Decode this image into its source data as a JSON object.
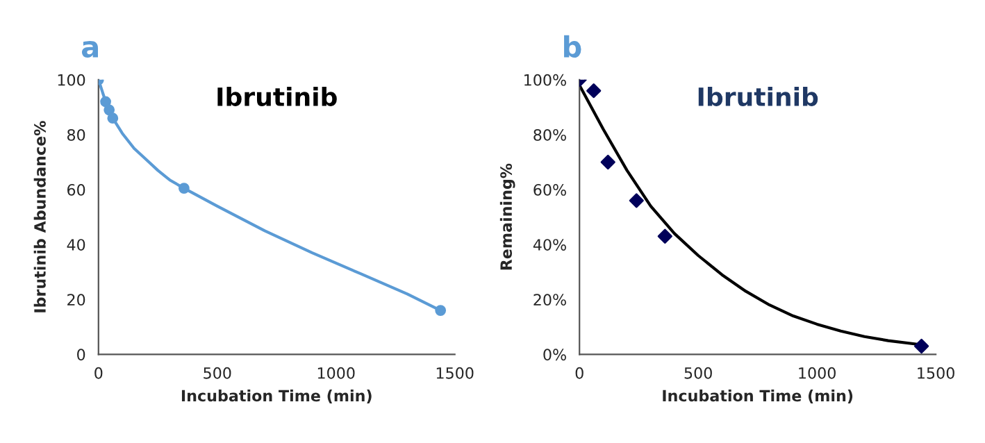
{
  "chart_data": [
    {
      "type": "line",
      "title": "Ibrutinib",
      "annotations": [
        "a"
      ],
      "xlabel": "Incubation Time (min)",
      "ylabel": "Ibrutinib Abundance%",
      "xlim": [
        0,
        1500
      ],
      "ylim": [
        0,
        100
      ],
      "xticks": [
        0,
        500,
        1000,
        1500
      ],
      "yticks": [
        0,
        20,
        40,
        60,
        80,
        100
      ],
      "grid": false,
      "legend": false,
      "marker": "circle",
      "line_style": "solid",
      "series": [
        {
          "color": "#5b9bd5",
          "marker": "none",
          "x": [
            0,
            30,
            45,
            60,
            100,
            150,
            200,
            250,
            300,
            360,
            500,
            700,
            900,
            1100,
            1300,
            1440
          ],
          "values": [
            100,
            92,
            89,
            86,
            80.5,
            75,
            71,
            67,
            63.5,
            60.5,
            54,
            45,
            37,
            29.5,
            22,
            16
          ]
        },
        {
          "type": "scatter",
          "color": "#5b9bd5",
          "x": [
            0,
            30,
            45,
            60,
            360,
            1440
          ],
          "values": [
            100,
            92,
            89,
            86,
            60.5,
            16
          ]
        }
      ]
    },
    {
      "type": "scatter",
      "title": "Ibrutinib",
      "annotations": [
        "b"
      ],
      "xlabel": "Incubation Time (min)",
      "ylabel": "Remaining%",
      "xlim": [
        0,
        1500
      ],
      "ylim": [
        0,
        100
      ],
      "xticks": [
        0,
        500,
        1000,
        1500
      ],
      "yticks": [
        {
          "value": 0,
          "label": "0%"
        },
        {
          "value": 20,
          "label": "20%"
        },
        {
          "value": 40,
          "label": "40%"
        },
        {
          "value": 60,
          "label": "60%"
        },
        {
          "value": 80,
          "label": "80%"
        },
        {
          "value": 100,
          "label": "100%"
        }
      ],
      "grid": false,
      "legend": false,
      "marker": "diamond",
      "series": [
        {
          "color": "#00005a",
          "x": [
            0,
            60,
            120,
            240,
            360,
            1440
          ],
          "values": [
            100,
            96,
            70,
            56,
            43,
            3
          ]
        },
        {
          "type": "line",
          "color": "#000000",
          "marker": "none",
          "x": [
            0,
            100,
            200,
            300,
            400,
            500,
            600,
            700,
            800,
            900,
            1000,
            1100,
            1200,
            1300,
            1440
          ],
          "values": [
            98,
            82,
            67,
            54,
            44,
            36,
            29,
            23,
            18,
            14,
            11,
            8.5,
            6.5,
            5,
            3.5
          ]
        }
      ]
    }
  ]
}
